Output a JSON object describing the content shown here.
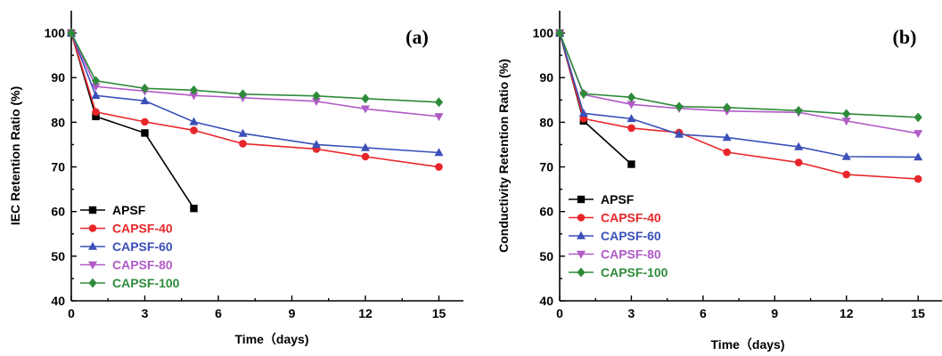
{
  "chart_data": [
    {
      "type": "line",
      "panel_label": "(a)",
      "xlabel": "Time（days)",
      "ylabel": "IEC Retention Ratio (%)",
      "xlim": [
        0,
        16
      ],
      "ylim": [
        40,
        105
      ],
      "xticks": [
        0,
        3,
        6,
        9,
        12,
        15
      ],
      "yticks": [
        40,
        50,
        60,
        70,
        80,
        90,
        100
      ],
      "legend_position": "bottom-left",
      "series": [
        {
          "name": "APSF",
          "color": "#000000",
          "marker": "square",
          "x": [
            0,
            1,
            3,
            5
          ],
          "y": [
            100,
            81.3,
            77.6,
            60.7
          ]
        },
        {
          "name": "CAPSF-40",
          "color": "#e8262a",
          "marker": "circle",
          "x": [
            0,
            1,
            3,
            5,
            7,
            10,
            12,
            15
          ],
          "y": [
            100,
            82.3,
            80.1,
            78.2,
            75.2,
            74.0,
            72.3,
            70.0
          ]
        },
        {
          "name": "CAPSF-60",
          "color": "#3a4fb8",
          "marker": "triangle-up",
          "x": [
            0,
            1,
            3,
            5,
            7,
            10,
            12,
            15
          ],
          "y": [
            100,
            86.0,
            84.8,
            80.1,
            77.5,
            75.0,
            74.3,
            73.2
          ]
        },
        {
          "name": "CAPSF-80",
          "color": "#b05bc6",
          "marker": "triangle-down",
          "x": [
            0,
            1,
            3,
            5,
            7,
            10,
            12,
            15
          ],
          "y": [
            100,
            88.0,
            87.0,
            86.0,
            85.5,
            84.7,
            83.0,
            81.3
          ]
        },
        {
          "name": "CAPSF-100",
          "color": "#2e8b3a",
          "marker": "diamond",
          "x": [
            0,
            1,
            3,
            5,
            7,
            10,
            12,
            15
          ],
          "y": [
            100,
            89.3,
            87.6,
            87.2,
            86.3,
            85.9,
            85.3,
            84.5
          ]
        }
      ]
    },
    {
      "type": "line",
      "panel_label": "(b)",
      "xlabel": "Time（days)",
      "ylabel": "Conductivity Retention Ratio (%)",
      "xlim": [
        0,
        16
      ],
      "ylim": [
        40,
        105
      ],
      "xticks": [
        0,
        3,
        6,
        9,
        12,
        15
      ],
      "yticks": [
        40,
        50,
        60,
        70,
        80,
        90,
        100
      ],
      "legend_position": "bottom-left",
      "series": [
        {
          "name": "APSF",
          "color": "#000000",
          "marker": "square",
          "x": [
            0,
            1,
            3
          ],
          "y": [
            100,
            80.3,
            70.6
          ]
        },
        {
          "name": "CAPSF-40",
          "color": "#e8262a",
          "marker": "circle",
          "x": [
            0,
            1,
            3,
            5,
            7,
            10,
            12,
            15
          ],
          "y": [
            100,
            80.8,
            78.7,
            77.7,
            73.3,
            71.0,
            68.3,
            67.3
          ]
        },
        {
          "name": "CAPSF-60",
          "color": "#3a4fb8",
          "marker": "triangle-up",
          "x": [
            0,
            1,
            3,
            5,
            7,
            10,
            12,
            15
          ],
          "y": [
            100,
            82.0,
            80.8,
            77.3,
            76.6,
            74.5,
            72.3,
            72.2
          ]
        },
        {
          "name": "CAPSF-80",
          "color": "#b05bc6",
          "marker": "triangle-down",
          "x": [
            0,
            1,
            3,
            5,
            7,
            10,
            12,
            15
          ],
          "y": [
            100,
            86.2,
            84.0,
            83.1,
            82.5,
            82.2,
            80.3,
            77.5
          ]
        },
        {
          "name": "CAPSF-100",
          "color": "#2e8b3a",
          "marker": "diamond",
          "x": [
            0,
            1,
            3,
            5,
            7,
            10,
            12,
            15
          ],
          "y": [
            100,
            86.4,
            85.6,
            83.5,
            83.3,
            82.6,
            81.9,
            81.1
          ]
        }
      ]
    }
  ]
}
